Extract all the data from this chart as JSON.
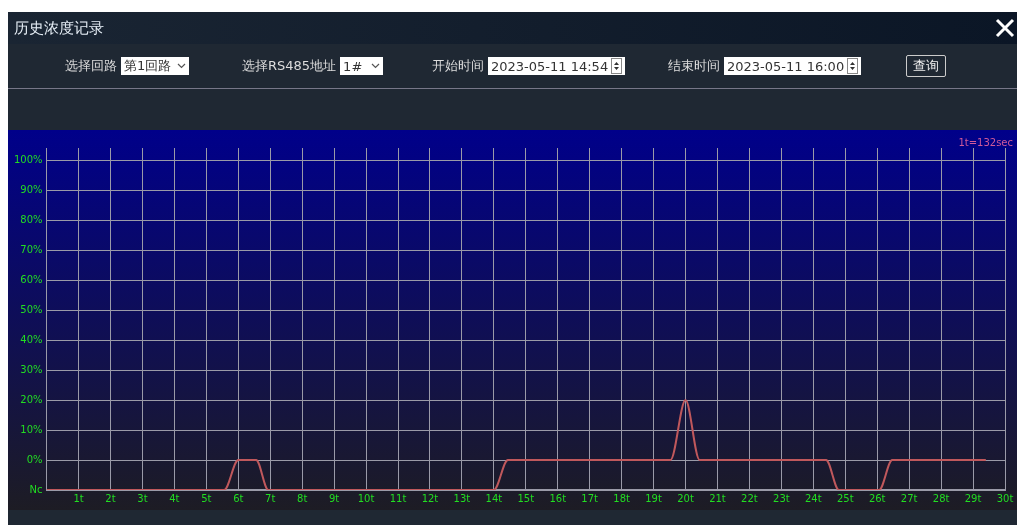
{
  "chart_data": {
    "type": "line",
    "title": "历史浓度记录",
    "annotations": [
      "1t=132sec",
      "选择回路",
      "第1回路",
      "选择RS485地址",
      "1#",
      "开始时间",
      "2023-05-11 14:54",
      "结束时间",
      "2023-05-11 16:00",
      "查询"
    ],
    "series": [
      {
        "color": "#c0585c",
        "x": [
          0,
          5.56,
          6.0,
          6.56,
          6.94,
          14.0,
          14.44,
          19.53,
          20.0,
          20.44,
          24.4,
          24.8,
          26.06,
          26.47,
          29.4
        ],
        "values": [
          -10,
          -10,
          0,
          0,
          -10,
          -10,
          0,
          0,
          20,
          0,
          0,
          -10,
          -10,
          0,
          0
        ]
      }
    ],
    "xlim": [
      0,
      30
    ],
    "xticks": [
      {
        "value": 1,
        "label": "1t"
      },
      {
        "value": 2,
        "label": "2t"
      },
      {
        "value": 3,
        "label": "3t"
      },
      {
        "value": 4,
        "label": "4t"
      },
      {
        "value": 5,
        "label": "5t"
      },
      {
        "value": 6,
        "label": "6t"
      },
      {
        "value": 7,
        "label": "7t"
      },
      {
        "value": 8,
        "label": "8t"
      },
      {
        "value": 9,
        "label": "9t"
      },
      {
        "value": 10,
        "label": "10t"
      },
      {
        "value": 11,
        "label": "11t"
      },
      {
        "value": 12,
        "label": "12t"
      },
      {
        "value": 13,
        "label": "13t"
      },
      {
        "value": 14,
        "label": "14t"
      },
      {
        "value": 15,
        "label": "15t"
      },
      {
        "value": 16,
        "label": "16t"
      },
      {
        "value": 17,
        "label": "17t"
      },
      {
        "value": 18,
        "label": "18t"
      },
      {
        "value": 19,
        "label": "19t"
      },
      {
        "value": 20,
        "label": "20t"
      },
      {
        "value": 21,
        "label": "21t"
      },
      {
        "value": 22,
        "label": "22t"
      },
      {
        "value": 23,
        "label": "23t"
      },
      {
        "value": 24,
        "label": "24t"
      },
      {
        "value": 25,
        "label": "25t"
      },
      {
        "value": 26,
        "label": "26t"
      },
      {
        "value": 27,
        "label": "27t"
      },
      {
        "value": 28,
        "label": "28t"
      },
      {
        "value": 29,
        "label": "29t"
      },
      {
        "value": 30,
        "label": "30t"
      }
    ],
    "ylim": [
      -10,
      104
    ],
    "yticks": [
      {
        "value": -10,
        "label": "Nc"
      },
      {
        "value": 0,
        "label": "0%"
      },
      {
        "value": 10,
        "label": "10%"
      },
      {
        "value": 20,
        "label": "20%"
      },
      {
        "value": 30,
        "label": "30%"
      },
      {
        "value": 40,
        "label": "40%"
      },
      {
        "value": 50,
        "label": "50%"
      },
      {
        "value": 60,
        "label": "60%"
      },
      {
        "value": 70,
        "label": "70%"
      },
      {
        "value": 80,
        "label": "80%"
      },
      {
        "value": 90,
        "label": "90%"
      },
      {
        "value": 100,
        "label": "100%"
      }
    ],
    "grid": true,
    "legend": false,
    "marker": "none",
    "line_style": "solid"
  }
}
